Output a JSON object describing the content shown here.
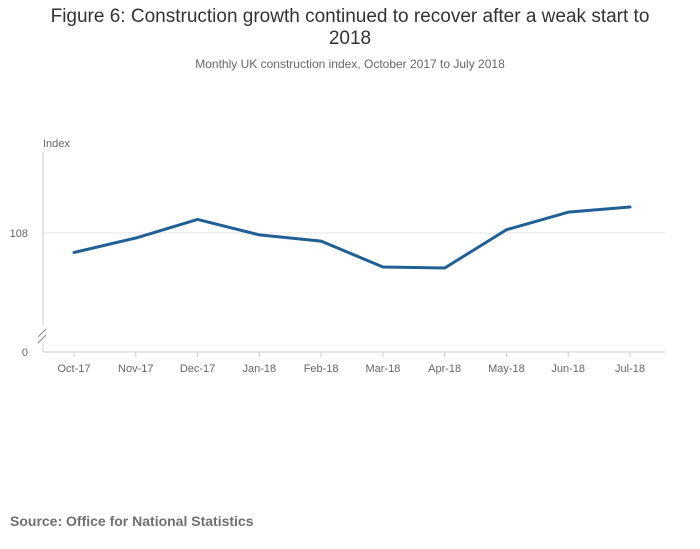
{
  "header": {
    "title": "Figure 6: Construction growth continued to recover after a weak start to 2018",
    "subtitle": "Monthly UK construction index, October 2017 to July 2018"
  },
  "footer": {
    "source_label": "Source:",
    "source_value": "Office for National Statistics"
  },
  "colors": {
    "series": "#206095",
    "axis": "#cccccc",
    "grid": "#e6e6e6",
    "text": "#666666"
  },
  "chart_data": {
    "type": "line",
    "ylabel": "Index",
    "categories": [
      "Oct-17",
      "Nov-17",
      "Dec-17",
      "Jan-18",
      "Feb-18",
      "Mar-18",
      "Apr-18",
      "May-18",
      "Jun-18",
      "Jul-18"
    ],
    "series": [
      {
        "values": [
          106.1,
          107.5,
          109.3,
          107.8,
          107.2,
          104.7,
          104.6,
          108.3,
          110.0,
          110.5
        ]
      }
    ],
    "y_ticks": [
      0,
      108
    ],
    "y_axis_break": true,
    "grid": true,
    "legend": "none"
  }
}
